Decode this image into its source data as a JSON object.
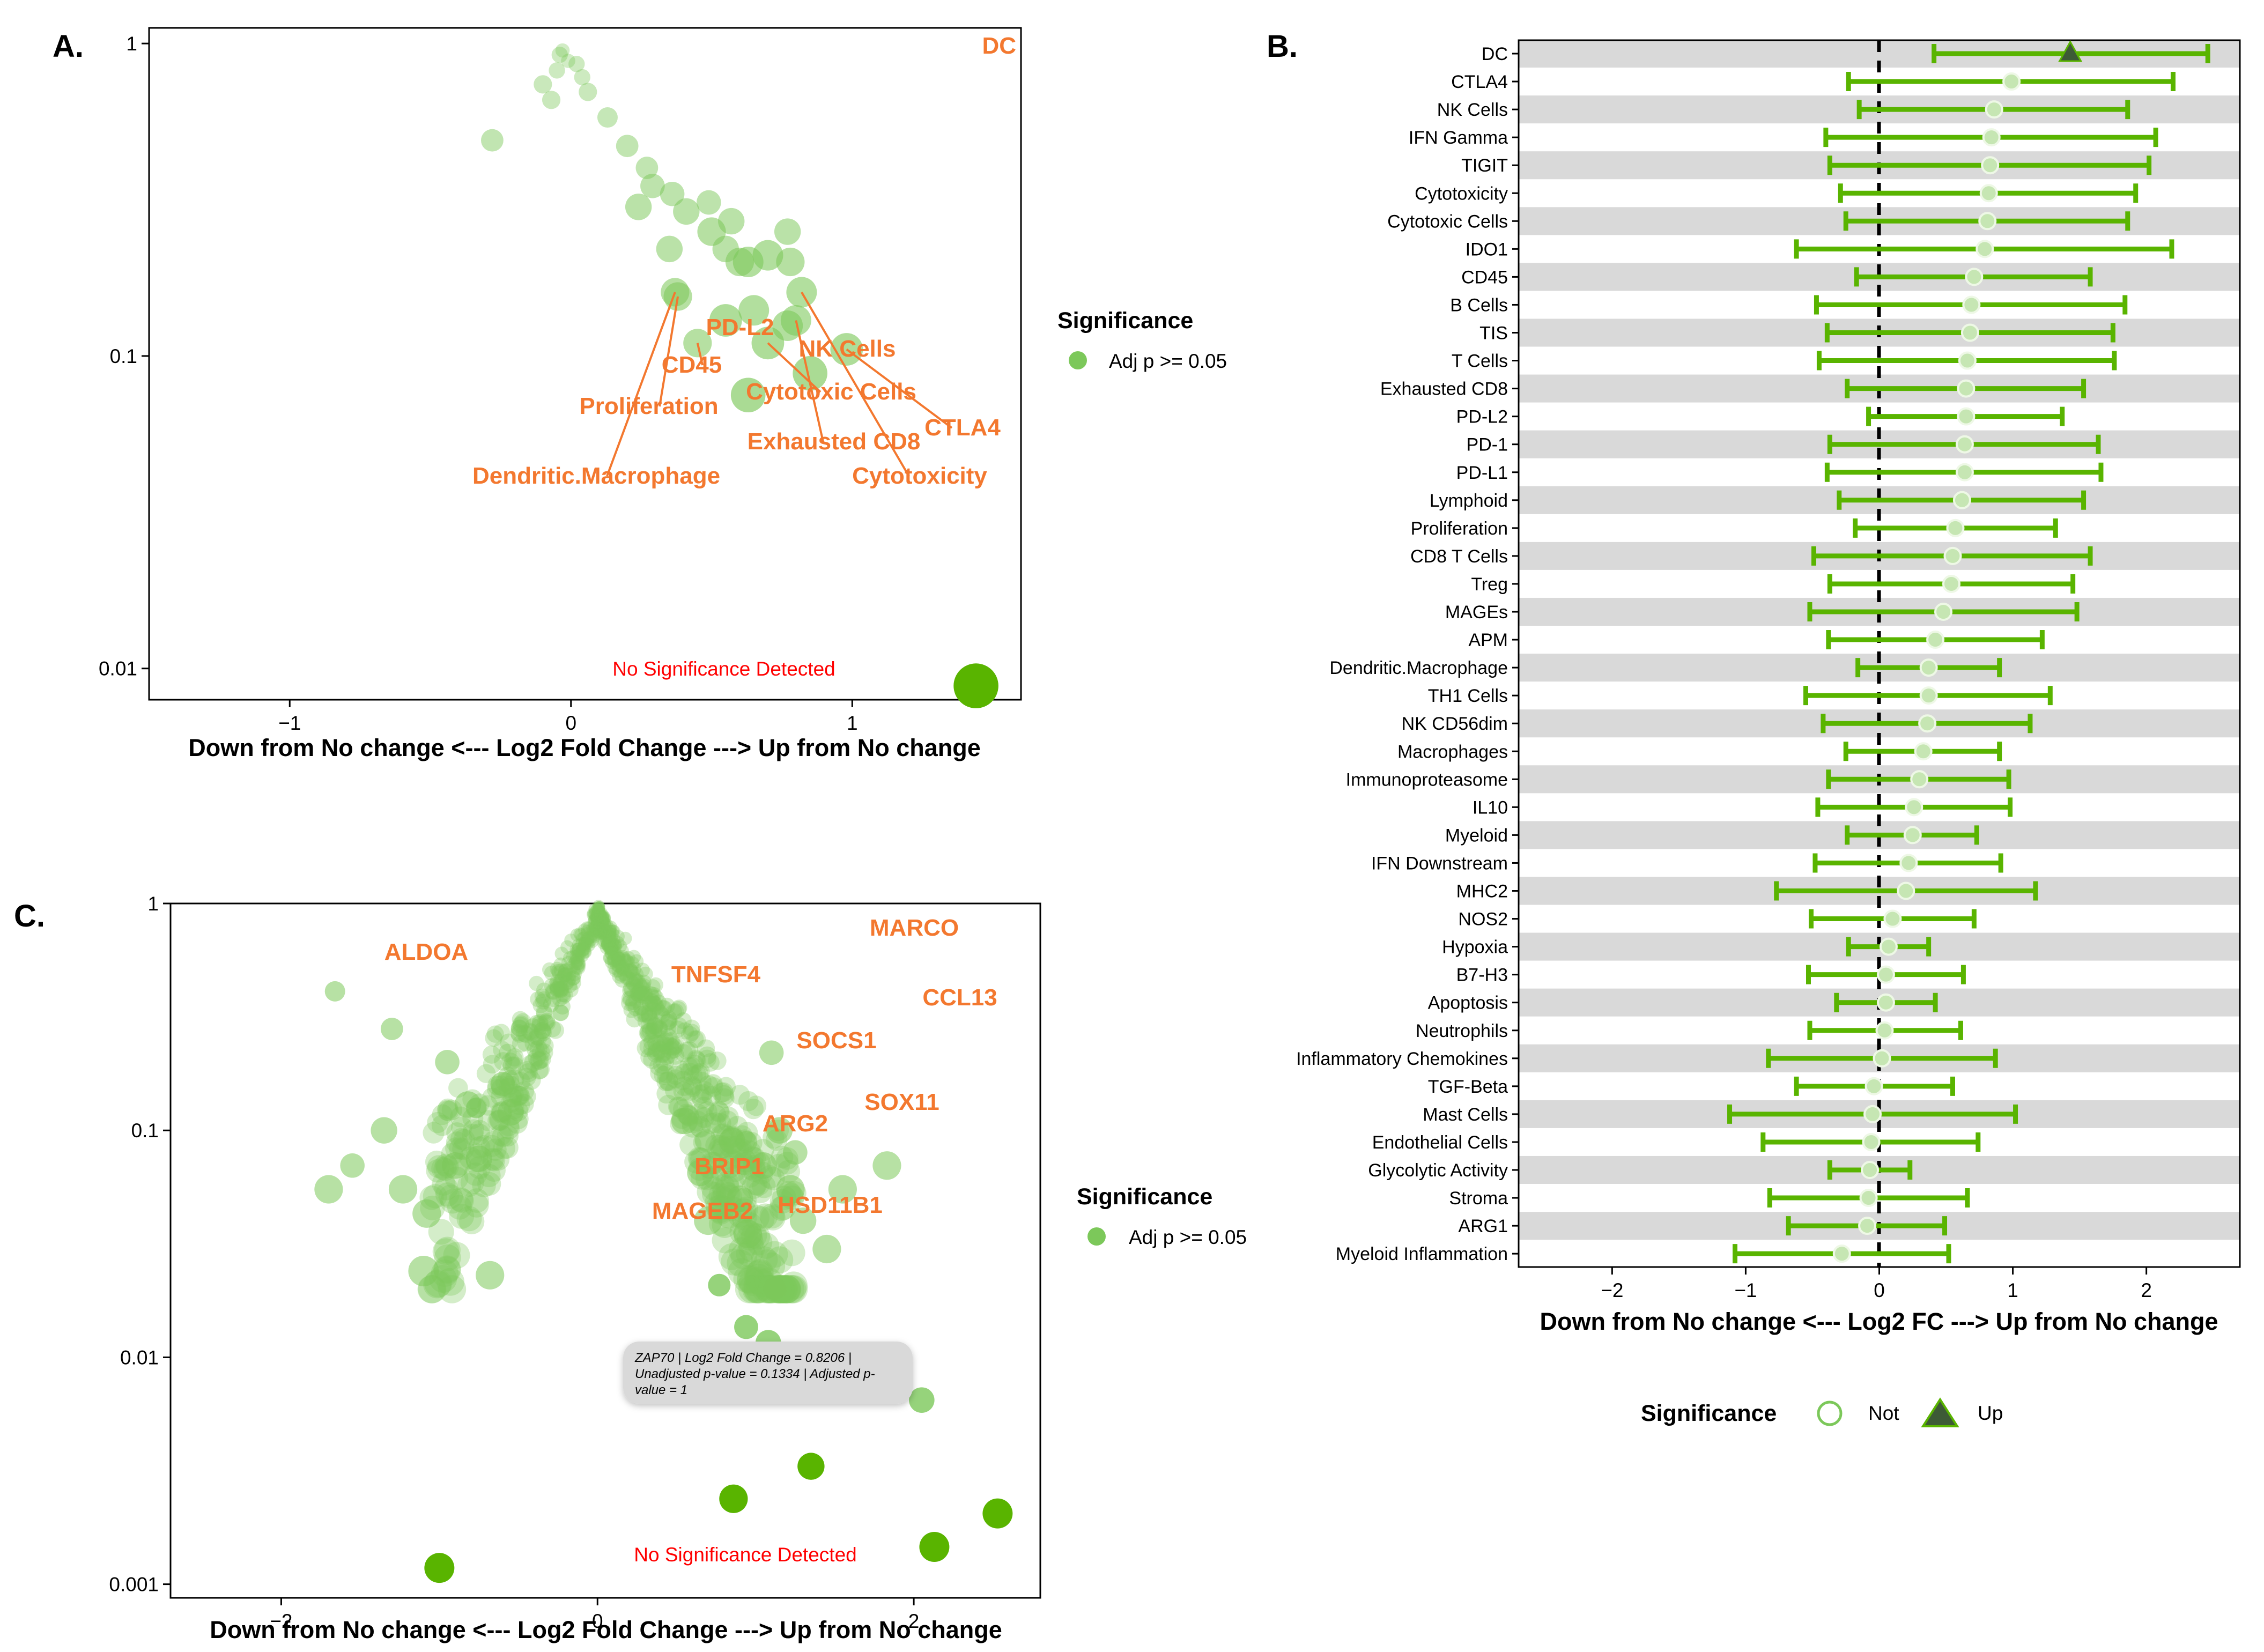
{
  "colors": {
    "green": "#59b400",
    "green_fill": "#7cc85a",
    "orange": "#f3782f",
    "red": "#ff0000",
    "band": "#d9d9d9",
    "dark_triangle": "#3d5a36"
  },
  "panels": {
    "a": "A.",
    "b": "B.",
    "c": "C."
  },
  "chart_data": [
    {
      "type": "scatter",
      "panel": "A",
      "xlabel": "Down from No change <--- Log2 Fold Change ---> Up from No change",
      "ylabel": "",
      "xlim": [
        -1.5,
        1.6
      ],
      "ylim_log10": [
        0.05,
        -2.1
      ],
      "xticks": [
        -1,
        0,
        1
      ],
      "xtick_labels": [
        "−1",
        "0",
        "1"
      ],
      "yticks": [
        0.01,
        0.1,
        1
      ],
      "ytick_labels": [
        "0.01",
        "0.1",
        "1"
      ],
      "annotation": "No Significance Detected",
      "legend": {
        "title": "Significance",
        "entries": [
          "Adj p >= 0.05"
        ],
        "position": "right"
      },
      "labeled_points": [
        {
          "label": "DC",
          "x": 1.44,
          "y": 0.0088,
          "size": 2.2
        },
        {
          "label": "PD-L2",
          "x": 0.63,
          "y": 0.075,
          "size": 1.7
        },
        {
          "label": "NK Cells",
          "x": 0.85,
          "y": 0.088,
          "size": 1.7
        },
        {
          "label": "CD45",
          "x": 0.45,
          "y": 0.11,
          "size": 1.4
        },
        {
          "label": "Cytotoxic Cells",
          "x": 0.7,
          "y": 0.11,
          "size": 1.6
        },
        {
          "label": "CTLA4",
          "x": 0.98,
          "y": 0.105,
          "size": 1.6
        },
        {
          "label": "Proliferation",
          "x": 0.38,
          "y": 0.155,
          "size": 1.4
        },
        {
          "label": "Exhausted CD8",
          "x": 0.8,
          "y": 0.13,
          "size": 1.5
        },
        {
          "label": "Cytotoxicity",
          "x": 0.82,
          "y": 0.16,
          "size": 1.5
        },
        {
          "label": "Dendritic.Macrophage",
          "x": 0.37,
          "y": 0.16,
          "size": 1.4
        }
      ],
      "points": [
        {
          "x": 0.55,
          "y": 0.13,
          "size": 1.6
        },
        {
          "x": 0.65,
          "y": 0.14,
          "size": 1.5
        },
        {
          "x": 0.77,
          "y": 0.125,
          "size": 1.5
        },
        {
          "x": 0.63,
          "y": 0.2,
          "size": 1.5
        },
        {
          "x": 0.7,
          "y": 0.21,
          "size": 1.5
        },
        {
          "x": 0.78,
          "y": 0.2,
          "size": 1.4
        },
        {
          "x": 0.6,
          "y": 0.2,
          "size": 1.4
        },
        {
          "x": 0.55,
          "y": 0.22,
          "size": 1.3
        },
        {
          "x": 0.5,
          "y": 0.25,
          "size": 1.4
        },
        {
          "x": 0.35,
          "y": 0.22,
          "size": 1.3
        },
        {
          "x": 0.41,
          "y": 0.29,
          "size": 1.3
        },
        {
          "x": 0.57,
          "y": 0.27,
          "size": 1.3
        },
        {
          "x": 0.77,
          "y": 0.25,
          "size": 1.3
        },
        {
          "x": 0.49,
          "y": 0.31,
          "size": 1.2
        },
        {
          "x": 0.24,
          "y": 0.3,
          "size": 1.3
        },
        {
          "x": 0.36,
          "y": 0.33,
          "size": 1.2
        },
        {
          "x": 0.29,
          "y": 0.35,
          "size": 1.2
        },
        {
          "x": 0.27,
          "y": 0.4,
          "size": 1.1
        },
        {
          "x": 0.2,
          "y": 0.47,
          "size": 1.1
        },
        {
          "x": -0.28,
          "y": 0.49,
          "size": 1.1
        },
        {
          "x": 0.13,
          "y": 0.58,
          "size": 1.0
        },
        {
          "x": -0.07,
          "y": 0.66,
          "size": 0.9
        },
        {
          "x": 0.06,
          "y": 0.7,
          "size": 0.9
        },
        {
          "x": -0.1,
          "y": 0.74,
          "size": 0.9
        },
        {
          "x": -0.05,
          "y": 0.82,
          "size": 0.8
        },
        {
          "x": 0.04,
          "y": 0.78,
          "size": 0.8
        },
        {
          "x": -0.04,
          "y": 0.92,
          "size": 0.8
        },
        {
          "x": 0.02,
          "y": 0.86,
          "size": 0.8
        },
        {
          "x": -0.01,
          "y": 0.88,
          "size": 0.7
        },
        {
          "x": -0.03,
          "y": 0.95,
          "size": 0.7
        }
      ]
    },
    {
      "type": "forest",
      "panel": "B",
      "xlabel": "Down from No change <--- Log2 FC ---> Up from No change",
      "xlim": [
        -2.7,
        2.7
      ],
      "xticks": [
        -2,
        -1,
        0,
        1,
        2
      ],
      "xtick_labels": [
        "−2",
        "−1",
        "0",
        "1",
        "2"
      ],
      "legend": {
        "title": "Significance",
        "entries": [
          "Not",
          "Up"
        ],
        "position": "bottom"
      },
      "rows": [
        {
          "label": "DC",
          "est": 1.43,
          "lo": 0.41,
          "hi": 2.46,
          "sig": "Up"
        },
        {
          "label": "CTLA4",
          "est": 0.99,
          "lo": -0.23,
          "hi": 2.2,
          "sig": "Not"
        },
        {
          "label": "NK Cells",
          "est": 0.86,
          "lo": -0.15,
          "hi": 1.86,
          "sig": "Not"
        },
        {
          "label": "IFN Gamma",
          "est": 0.84,
          "lo": -0.4,
          "hi": 2.07,
          "sig": "Not"
        },
        {
          "label": "TIGIT",
          "est": 0.83,
          "lo": -0.37,
          "hi": 2.02,
          "sig": "Not"
        },
        {
          "label": "Cytotoxicity",
          "est": 0.82,
          "lo": -0.29,
          "hi": 1.92,
          "sig": "Not"
        },
        {
          "label": "Cytotoxic Cells",
          "est": 0.81,
          "lo": -0.25,
          "hi": 1.86,
          "sig": "Not"
        },
        {
          "label": "IDO1",
          "est": 0.79,
          "lo": -0.62,
          "hi": 2.19,
          "sig": "Not"
        },
        {
          "label": "CD45",
          "est": 0.71,
          "lo": -0.17,
          "hi": 1.58,
          "sig": "Not"
        },
        {
          "label": "B Cells",
          "est": 0.69,
          "lo": -0.47,
          "hi": 1.84,
          "sig": "Not"
        },
        {
          "label": "TIS",
          "est": 0.68,
          "lo": -0.39,
          "hi": 1.75,
          "sig": "Not"
        },
        {
          "label": "T Cells",
          "est": 0.66,
          "lo": -0.45,
          "hi": 1.76,
          "sig": "Not"
        },
        {
          "label": "Exhausted CD8",
          "est": 0.65,
          "lo": -0.24,
          "hi": 1.53,
          "sig": "Not"
        },
        {
          "label": "PD-L2",
          "est": 0.65,
          "lo": -0.08,
          "hi": 1.37,
          "sig": "Not"
        },
        {
          "label": "PD-1",
          "est": 0.64,
          "lo": -0.37,
          "hi": 1.64,
          "sig": "Not"
        },
        {
          "label": "PD-L1",
          "est": 0.64,
          "lo": -0.39,
          "hi": 1.66,
          "sig": "Not"
        },
        {
          "label": "Lymphoid",
          "est": 0.62,
          "lo": -0.3,
          "hi": 1.53,
          "sig": "Not"
        },
        {
          "label": "Proliferation",
          "est": 0.57,
          "lo": -0.18,
          "hi": 1.32,
          "sig": "Not"
        },
        {
          "label": "CD8 T Cells",
          "est": 0.55,
          "lo": -0.49,
          "hi": 1.58,
          "sig": "Not"
        },
        {
          "label": "Treg",
          "est": 0.54,
          "lo": -0.37,
          "hi": 1.45,
          "sig": "Not"
        },
        {
          "label": "MAGEs",
          "est": 0.48,
          "lo": -0.52,
          "hi": 1.48,
          "sig": "Not"
        },
        {
          "label": "APM",
          "est": 0.42,
          "lo": -0.38,
          "hi": 1.22,
          "sig": "Not"
        },
        {
          "label": "Dendritic.Macrophage",
          "est": 0.37,
          "lo": -0.16,
          "hi": 0.9,
          "sig": "Not"
        },
        {
          "label": "TH1 Cells",
          "est": 0.37,
          "lo": -0.55,
          "hi": 1.28,
          "sig": "Not"
        },
        {
          "label": "NK CD56dim",
          "est": 0.36,
          "lo": -0.42,
          "hi": 1.13,
          "sig": "Not"
        },
        {
          "label": "Macrophages",
          "est": 0.33,
          "lo": -0.25,
          "hi": 0.9,
          "sig": "Not"
        },
        {
          "label": "Immunoproteasome",
          "est": 0.3,
          "lo": -0.38,
          "hi": 0.97,
          "sig": "Not"
        },
        {
          "label": "IL10",
          "est": 0.26,
          "lo": -0.46,
          "hi": 0.98,
          "sig": "Not"
        },
        {
          "label": "Myeloid",
          "est": 0.25,
          "lo": -0.24,
          "hi": 0.73,
          "sig": "Not"
        },
        {
          "label": "IFN Downstream",
          "est": 0.22,
          "lo": -0.48,
          "hi": 0.91,
          "sig": "Not"
        },
        {
          "label": "MHC2",
          "est": 0.2,
          "lo": -0.77,
          "hi": 1.17,
          "sig": "Not"
        },
        {
          "label": "NOS2",
          "est": 0.1,
          "lo": -0.51,
          "hi": 0.71,
          "sig": "Not"
        },
        {
          "label": "Hypoxia",
          "est": 0.07,
          "lo": -0.23,
          "hi": 0.37,
          "sig": "Not"
        },
        {
          "label": "B7-H3",
          "est": 0.05,
          "lo": -0.53,
          "hi": 0.63,
          "sig": "Not"
        },
        {
          "label": "Apoptosis",
          "est": 0.05,
          "lo": -0.32,
          "hi": 0.42,
          "sig": "Not"
        },
        {
          "label": "Neutrophils",
          "est": 0.04,
          "lo": -0.52,
          "hi": 0.61,
          "sig": "Not"
        },
        {
          "label": "Inflammatory Chemokines",
          "est": 0.02,
          "lo": -0.83,
          "hi": 0.87,
          "sig": "Not"
        },
        {
          "label": "TGF-Beta",
          "est": -0.04,
          "lo": -0.62,
          "hi": 0.55,
          "sig": "Not"
        },
        {
          "label": "Mast Cells",
          "est": -0.05,
          "lo": -1.12,
          "hi": 1.02,
          "sig": "Not"
        },
        {
          "label": "Endothelial Cells",
          "est": -0.06,
          "lo": -0.87,
          "hi": 0.74,
          "sig": "Not"
        },
        {
          "label": "Glycolytic Activity",
          "est": -0.07,
          "lo": -0.37,
          "hi": 0.23,
          "sig": "Not"
        },
        {
          "label": "Stroma",
          "est": -0.08,
          "lo": -0.82,
          "hi": 0.66,
          "sig": "Not"
        },
        {
          "label": "ARG1",
          "est": -0.09,
          "lo": -0.68,
          "hi": 0.49,
          "sig": "Not"
        },
        {
          "label": "Myeloid Inflammation",
          "est": -0.28,
          "lo": -1.08,
          "hi": 0.52,
          "sig": "Not"
        }
      ]
    },
    {
      "type": "scatter",
      "panel": "C",
      "xlabel": "Down from No change <--- Log2 Fold Change ---> Up from No change",
      "ylabel": "",
      "xlim": [
        -2.7,
        2.8
      ],
      "ylim_log10": [
        0.0,
        -3.06
      ],
      "xticks": [
        -2,
        0,
        2
      ],
      "xtick_labels": [
        "−2",
        "0",
        "2"
      ],
      "yticks": [
        0.001,
        0.01,
        0.1,
        1
      ],
      "ytick_labels": [
        "0.001",
        "0.01",
        "0.1",
        "1"
      ],
      "annotation": "No Significance Detected",
      "legend": {
        "title": "Significance",
        "entries": [
          "Adj p >= 0.05"
        ],
        "position": "right"
      },
      "tooltip": "ZAP70 | Log2 Fold Change = 0.8206 | Unadjusted p-value = 0.1334 | Adjusted p-value = 1",
      "labeled_points": [
        {
          "label": "ALDOA",
          "x": -1.0,
          "y": 0.00118,
          "size": 2.0
        },
        {
          "label": "MARCO",
          "x": 2.13,
          "y": 0.00146,
          "size": 2.0
        },
        {
          "label": "CCL13",
          "x": 2.53,
          "y": 0.00205,
          "size": 2.0
        },
        {
          "label": "TNFSF4",
          "x": 0.86,
          "y": 0.00238,
          "size": 1.9
        },
        {
          "label": "SOCS1",
          "x": 1.35,
          "y": 0.00331,
          "size": 1.8
        },
        {
          "label": "SOX11",
          "x": 2.05,
          "y": 0.00648,
          "size": 1.7
        },
        {
          "label": "ARG2",
          "x": 1.08,
          "y": 0.0116,
          "size": 1.7
        },
        {
          "label": "BRIP1",
          "x": 0.94,
          "y": 0.0136,
          "size": 1.6
        },
        {
          "label": "MAGEB2",
          "x": 0.77,
          "y": 0.0208,
          "size": 1.5
        },
        {
          "label": "HSD11B1",
          "x": 1.12,
          "y": 0.0201,
          "size": 1.5
        }
      ],
      "tooltip_point": {
        "label": "ZAP70",
        "x": 0.82,
        "y": 0.1334
      }
    }
  ]
}
